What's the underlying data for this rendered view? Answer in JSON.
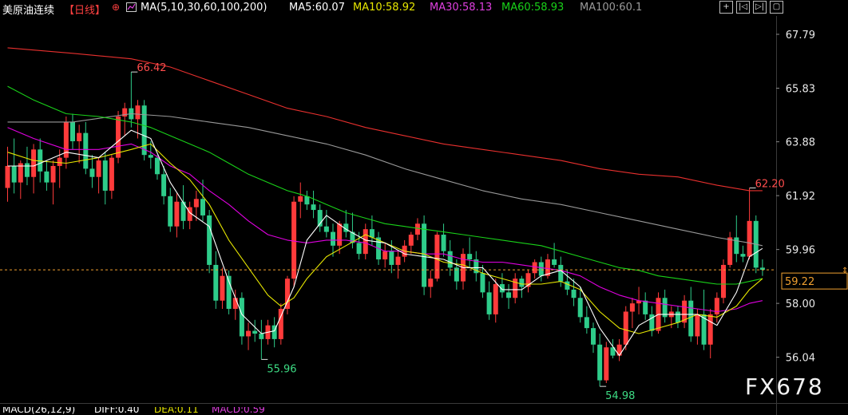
{
  "header": {
    "instrument": "美原油连续",
    "period": "【日线】",
    "settings_glyph": "⊕",
    "ma_params": "MA(5,10,30,60,100,200)",
    "ma5": "MA5:60.07",
    "ma10": "MA10:58.92",
    "ma30": "MA30:58.13",
    "ma60": "MA60:58.93",
    "ma100": "MA100:60.1"
  },
  "toolbar": {
    "buttons": [
      "+",
      "|◁",
      "▷|",
      "▢"
    ]
  },
  "price_tag": "59.22",
  "watermark": "FX678",
  "footer": {
    "macd_params": "MACD(26,12,9)",
    "diff": "DIFF:0.40",
    "dea": "DEA:0.11",
    "macd": "MACD:0.59"
  },
  "colors": {
    "up": "#ff3b3b",
    "down": "#2ecc8a",
    "ma5": "#ffffff",
    "ma10": "#e6e600",
    "ma30": "#e000e0",
    "ma60": "#19d219",
    "ma100": "#999999",
    "ma200": "#e8302e"
  },
  "chart_data": {
    "type": "candlestick",
    "ylim": [
      55.1,
      68.4
    ],
    "y_ticks": [
      "67.79",
      "65.83",
      "63.88",
      "61.92",
      "59.96",
      "58.00",
      "56.04"
    ],
    "last_price": 59.22,
    "annotations": [
      {
        "label": "66.42",
        "index": 19,
        "kind": "high"
      },
      {
        "label": "55.96",
        "index": 39,
        "kind": "low"
      },
      {
        "label": "54.98",
        "index": 91,
        "kind": "low"
      },
      {
        "label": "62.20",
        "index": 114,
        "kind": "high"
      }
    ],
    "candles": [
      [
        62.2,
        63.7,
        61.7,
        63.0
      ],
      [
        63.0,
        64.0,
        62.0,
        62.4
      ],
      [
        62.4,
        63.2,
        61.8,
        63.1
      ],
      [
        63.1,
        63.7,
        62.3,
        62.6
      ],
      [
        62.6,
        63.8,
        62.0,
        63.6
      ],
      [
        63.6,
        64.0,
        62.4,
        62.8
      ],
      [
        62.8,
        63.2,
        62.1,
        62.4
      ],
      [
        62.4,
        63.2,
        61.6,
        63.0
      ],
      [
        63.0,
        63.6,
        62.2,
        63.3
      ],
      [
        63.3,
        64.8,
        62.9,
        64.6
      ],
      [
        64.6,
        64.9,
        63.6,
        63.9
      ],
      [
        63.9,
        64.5,
        63.1,
        64.2
      ],
      [
        64.2,
        64.6,
        62.7,
        62.9
      ],
      [
        62.9,
        63.4,
        62.2,
        62.6
      ],
      [
        62.6,
        63.3,
        62.0,
        63.2
      ],
      [
        63.2,
        63.5,
        61.6,
        62.1
      ],
      [
        62.1,
        63.4,
        61.8,
        63.3
      ],
      [
        63.3,
        65.0,
        63.1,
        64.8
      ],
      [
        64.8,
        65.3,
        64.1,
        65.1
      ],
      [
        65.1,
        66.42,
        64.4,
        64.7
      ],
      [
        64.7,
        65.4,
        64.0,
        65.2
      ],
      [
        65.2,
        65.4,
        63.2,
        63.4
      ],
      [
        63.4,
        63.9,
        62.9,
        63.3
      ],
      [
        63.3,
        63.4,
        62.5,
        62.7
      ],
      [
        62.7,
        63.0,
        61.6,
        61.9
      ],
      [
        61.9,
        62.2,
        60.6,
        60.8
      ],
      [
        60.8,
        62.0,
        60.4,
        61.7
      ],
      [
        61.7,
        62.3,
        60.7,
        61.0
      ],
      [
        61.0,
        61.7,
        60.7,
        61.5
      ],
      [
        61.5,
        62.1,
        61.0,
        61.8
      ],
      [
        61.8,
        62.5,
        61.0,
        61.2
      ],
      [
        61.2,
        61.4,
        59.1,
        59.4
      ],
      [
        59.4,
        59.9,
        57.8,
        58.1
      ],
      [
        58.1,
        59.3,
        57.8,
        59.0
      ],
      [
        59.0,
        59.2,
        57.6,
        57.8
      ],
      [
        57.8,
        58.5,
        57.4,
        58.2
      ],
      [
        58.2,
        58.4,
        56.5,
        56.8
      ],
      [
        56.8,
        57.3,
        56.3,
        57.0
      ],
      [
        57.0,
        57.4,
        56.6,
        56.9
      ],
      [
        56.9,
        57.4,
        55.96,
        56.7
      ],
      [
        56.7,
        57.4,
        56.5,
        57.2
      ],
      [
        57.2,
        57.5,
        56.4,
        56.7
      ],
      [
        56.7,
        58.0,
        56.5,
        57.8
      ],
      [
        57.8,
        59.0,
        57.6,
        58.9
      ],
      [
        58.9,
        61.9,
        58.6,
        61.7
      ],
      [
        61.7,
        62.4,
        61.1,
        61.9
      ],
      [
        61.9,
        62.1,
        61.4,
        61.6
      ],
      [
        61.6,
        62.1,
        61.1,
        61.4
      ],
      [
        61.4,
        61.6,
        60.6,
        60.8
      ],
      [
        60.8,
        61.4,
        60.4,
        60.6
      ],
      [
        60.6,
        60.9,
        59.7,
        60.1
      ],
      [
        60.1,
        61.0,
        59.8,
        60.9
      ],
      [
        60.9,
        61.4,
        60.4,
        60.6
      ],
      [
        60.6,
        61.3,
        60.0,
        60.2
      ],
      [
        60.2,
        60.6,
        59.6,
        59.8
      ],
      [
        59.8,
        60.9,
        59.6,
        60.7
      ],
      [
        60.7,
        61.2,
        60.1,
        60.4
      ],
      [
        60.4,
        60.6,
        59.4,
        59.6
      ],
      [
        59.6,
        60.2,
        59.3,
        59.9
      ],
      [
        59.9,
        60.3,
        59.1,
        59.4
      ],
      [
        59.4,
        59.9,
        58.9,
        59.7
      ],
      [
        59.7,
        60.3,
        59.5,
        60.1
      ],
      [
        60.1,
        60.6,
        59.8,
        60.5
      ],
      [
        60.5,
        61.1,
        60.3,
        60.9
      ],
      [
        60.9,
        61.2,
        58.3,
        58.6
      ],
      [
        58.6,
        59.2,
        58.2,
        58.9
      ],
      [
        58.9,
        60.6,
        58.8,
        60.5
      ],
      [
        60.5,
        60.9,
        59.7,
        59.9
      ],
      [
        59.9,
        60.3,
        59.0,
        59.3
      ],
      [
        59.3,
        59.6,
        58.5,
        58.8
      ],
      [
        58.8,
        60.0,
        58.5,
        59.8
      ],
      [
        59.8,
        60.4,
        59.3,
        59.6
      ],
      [
        59.6,
        59.9,
        58.8,
        59.1
      ],
      [
        59.1,
        59.4,
        58.2,
        58.4
      ],
      [
        58.4,
        58.8,
        57.4,
        57.6
      ],
      [
        57.6,
        58.9,
        57.3,
        58.7
      ],
      [
        58.7,
        59.1,
        58.2,
        58.4
      ],
      [
        58.4,
        58.7,
        57.8,
        58.2
      ],
      [
        58.2,
        59.1,
        58.0,
        58.9
      ],
      [
        58.9,
        59.0,
        58.2,
        58.6
      ],
      [
        58.6,
        59.2,
        58.4,
        59.1
      ],
      [
        59.1,
        59.6,
        58.9,
        59.5
      ],
      [
        59.5,
        59.7,
        58.8,
        59.0
      ],
      [
        59.0,
        59.8,
        58.9,
        59.6
      ],
      [
        59.6,
        60.2,
        59.3,
        59.4
      ],
      [
        59.4,
        59.7,
        58.6,
        58.8
      ],
      [
        58.8,
        59.2,
        58.3,
        58.5
      ],
      [
        58.5,
        58.9,
        57.9,
        58.2
      ],
      [
        58.2,
        58.6,
        57.3,
        57.5
      ],
      [
        57.5,
        57.9,
        56.9,
        57.1
      ],
      [
        57.1,
        57.3,
        56.2,
        56.5
      ],
      [
        56.5,
        56.9,
        54.98,
        55.2
      ],
      [
        55.2,
        56.6,
        55.1,
        56.4
      ],
      [
        56.4,
        56.7,
        56.0,
        56.1
      ],
      [
        56.1,
        56.7,
        55.9,
        56.5
      ],
      [
        56.5,
        57.9,
        56.3,
        57.7
      ],
      [
        57.7,
        58.2,
        57.1,
        58.0
      ],
      [
        58.0,
        58.6,
        57.6,
        58.1
      ],
      [
        58.1,
        58.4,
        57.4,
        57.6
      ],
      [
        57.6,
        57.9,
        56.8,
        57.0
      ],
      [
        57.0,
        58.4,
        56.9,
        58.2
      ],
      [
        58.2,
        58.5,
        57.3,
        57.5
      ],
      [
        57.5,
        57.9,
        57.1,
        57.7
      ],
      [
        57.7,
        57.9,
        57.1,
        57.3
      ],
      [
        57.3,
        58.3,
        57.1,
        58.1
      ],
      [
        58.1,
        58.6,
        56.6,
        56.8
      ],
      [
        56.8,
        57.8,
        56.5,
        57.6
      ],
      [
        57.6,
        58.5,
        56.3,
        56.5
      ],
      [
        56.5,
        57.8,
        56.0,
        57.6
      ],
      [
        57.6,
        58.4,
        57.3,
        58.2
      ],
      [
        58.2,
        59.6,
        58.0,
        59.4
      ],
      [
        59.4,
        60.6,
        59.3,
        60.4
      ],
      [
        60.4,
        61.2,
        59.5,
        59.8
      ],
      [
        59.8,
        60.1,
        59.5,
        59.7
      ],
      [
        59.7,
        62.2,
        59.6,
        61.0
      ],
      [
        61.0,
        61.2,
        59.1,
        59.3
      ],
      [
        59.3,
        59.6,
        59.0,
        59.22
      ]
    ],
    "ma_lines": {
      "ma5": [
        [
          0,
          63.0
        ],
        [
          4,
          63.0
        ],
        [
          9,
          63.5
        ],
        [
          14,
          63.3
        ],
        [
          19,
          64.3
        ],
        [
          22,
          64.0
        ],
        [
          25,
          62.4
        ],
        [
          28,
          61.3
        ],
        [
          31,
          60.8
        ],
        [
          34,
          58.8
        ],
        [
          36,
          57.6
        ],
        [
          39,
          56.9
        ],
        [
          41,
          57.0
        ],
        [
          44,
          58.6
        ],
        [
          46,
          60.3
        ],
        [
          49,
          61.2
        ],
        [
          52,
          60.7
        ],
        [
          55,
          60.3
        ],
        [
          58,
          60.2
        ],
        [
          61,
          59.8
        ],
        [
          64,
          59.7
        ],
        [
          67,
          59.6
        ],
        [
          70,
          59.3
        ],
        [
          73,
          59.3
        ],
        [
          76,
          58.5
        ],
        [
          79,
          58.5
        ],
        [
          82,
          59.0
        ],
        [
          85,
          59.2
        ],
        [
          88,
          58.6
        ],
        [
          91,
          57.1
        ],
        [
          94,
          56.1
        ],
        [
          97,
          57.2
        ],
        [
          100,
          57.6
        ],
        [
          103,
          57.6
        ],
        [
          106,
          57.6
        ],
        [
          109,
          57.2
        ],
        [
          112,
          58.4
        ],
        [
          114,
          59.7
        ],
        [
          116,
          60.0
        ]
      ],
      "ma10": [
        [
          0,
          63.5
        ],
        [
          4,
          63.2
        ],
        [
          9,
          63.1
        ],
        [
          14,
          63.3
        ],
        [
          19,
          63.6
        ],
        [
          22,
          63.8
        ],
        [
          25,
          63.1
        ],
        [
          28,
          62.5
        ],
        [
          31,
          61.6
        ],
        [
          34,
          60.3
        ],
        [
          37,
          59.3
        ],
        [
          40,
          58.3
        ],
        [
          42,
          57.9
        ],
        [
          44,
          58.2
        ],
        [
          46,
          58.9
        ],
        [
          49,
          59.7
        ],
        [
          52,
          60.1
        ],
        [
          55,
          60.5
        ],
        [
          58,
          60.2
        ],
        [
          61,
          59.9
        ],
        [
          64,
          59.8
        ],
        [
          67,
          59.5
        ],
        [
          70,
          59.4
        ],
        [
          73,
          59.1
        ],
        [
          76,
          58.9
        ],
        [
          79,
          58.7
        ],
        [
          82,
          58.7
        ],
        [
          85,
          58.8
        ],
        [
          88,
          58.5
        ],
        [
          91,
          57.7
        ],
        [
          94,
          57.1
        ],
        [
          97,
          56.9
        ],
        [
          100,
          57.1
        ],
        [
          103,
          57.3
        ],
        [
          106,
          57.6
        ],
        [
          109,
          57.5
        ],
        [
          112,
          57.9
        ],
        [
          114,
          58.5
        ],
        [
          116,
          58.9
        ]
      ],
      "ma30": [
        [
          0,
          64.4
        ],
        [
          4,
          64.0
        ],
        [
          9,
          63.6
        ],
        [
          14,
          63.6
        ],
        [
          19,
          63.8
        ],
        [
          22,
          63.5
        ],
        [
          25,
          63.0
        ],
        [
          28,
          62.7
        ],
        [
          31,
          62.1
        ],
        [
          34,
          61.6
        ],
        [
          37,
          61.0
        ],
        [
          40,
          60.5
        ],
        [
          43,
          60.3
        ],
        [
          46,
          60.2
        ],
        [
          49,
          60.3
        ],
        [
          52,
          60.3
        ],
        [
          55,
          60.2
        ],
        [
          58,
          59.9
        ],
        [
          61,
          59.9
        ],
        [
          64,
          59.8
        ],
        [
          67,
          59.8
        ],
        [
          70,
          59.6
        ],
        [
          73,
          59.5
        ],
        [
          76,
          59.5
        ],
        [
          79,
          59.4
        ],
        [
          82,
          59.3
        ],
        [
          85,
          59.2
        ],
        [
          88,
          59.0
        ],
        [
          91,
          58.6
        ],
        [
          94,
          58.3
        ],
        [
          97,
          58.1
        ],
        [
          100,
          58.0
        ],
        [
          103,
          57.9
        ],
        [
          106,
          57.8
        ],
        [
          109,
          57.7
        ],
        [
          112,
          57.8
        ],
        [
          114,
          58.0
        ],
        [
          116,
          58.1
        ]
      ],
      "ma60": [
        [
          0,
          65.9
        ],
        [
          4,
          65.4
        ],
        [
          9,
          64.9
        ],
        [
          14,
          64.8
        ],
        [
          19,
          64.6
        ],
        [
          22,
          64.4
        ],
        [
          25,
          64.1
        ],
        [
          28,
          63.8
        ],
        [
          31,
          63.5
        ],
        [
          34,
          63.1
        ],
        [
          37,
          62.7
        ],
        [
          40,
          62.4
        ],
        [
          43,
          62.1
        ],
        [
          46,
          61.9
        ],
        [
          49,
          61.6
        ],
        [
          52,
          61.3
        ],
        [
          55,
          61.1
        ],
        [
          58,
          60.9
        ],
        [
          61,
          60.8
        ],
        [
          64,
          60.7
        ],
        [
          67,
          60.6
        ],
        [
          70,
          60.5
        ],
        [
          73,
          60.4
        ],
        [
          76,
          60.3
        ],
        [
          79,
          60.2
        ],
        [
          82,
          60.1
        ],
        [
          85,
          59.9
        ],
        [
          88,
          59.7
        ],
        [
          91,
          59.5
        ],
        [
          94,
          59.3
        ],
        [
          97,
          59.2
        ],
        [
          100,
          59.0
        ],
        [
          103,
          58.9
        ],
        [
          106,
          58.8
        ],
        [
          109,
          58.7
        ],
        [
          112,
          58.7
        ],
        [
          114,
          58.8
        ],
        [
          116,
          58.9
        ]
      ],
      "ma100": [
        [
          0,
          64.6
        ],
        [
          10,
          64.6
        ],
        [
          19,
          64.9
        ],
        [
          25,
          64.8
        ],
        [
          31,
          64.6
        ],
        [
          37,
          64.4
        ],
        [
          43,
          64.1
        ],
        [
          49,
          63.8
        ],
        [
          55,
          63.4
        ],
        [
          61,
          62.9
        ],
        [
          67,
          62.5
        ],
        [
          73,
          62.1
        ],
        [
          79,
          61.8
        ],
        [
          85,
          61.6
        ],
        [
          91,
          61.3
        ],
        [
          97,
          61.0
        ],
        [
          103,
          60.7
        ],
        [
          109,
          60.4
        ],
        [
          114,
          60.2
        ],
        [
          116,
          60.1
        ]
      ],
      "ma200": [
        [
          0,
          67.3
        ],
        [
          10,
          67.1
        ],
        [
          19,
          66.9
        ],
        [
          25,
          66.6
        ],
        [
          31,
          66.1
        ],
        [
          37,
          65.6
        ],
        [
          43,
          65.1
        ],
        [
          49,
          64.8
        ],
        [
          55,
          64.4
        ],
        [
          61,
          64.1
        ],
        [
          67,
          63.8
        ],
        [
          73,
          63.6
        ],
        [
          79,
          63.4
        ],
        [
          85,
          63.2
        ],
        [
          91,
          62.9
        ],
        [
          97,
          62.7
        ],
        [
          103,
          62.6
        ],
        [
          109,
          62.3
        ],
        [
          114,
          62.1
        ],
        [
          116,
          62.1
        ]
      ]
    }
  }
}
